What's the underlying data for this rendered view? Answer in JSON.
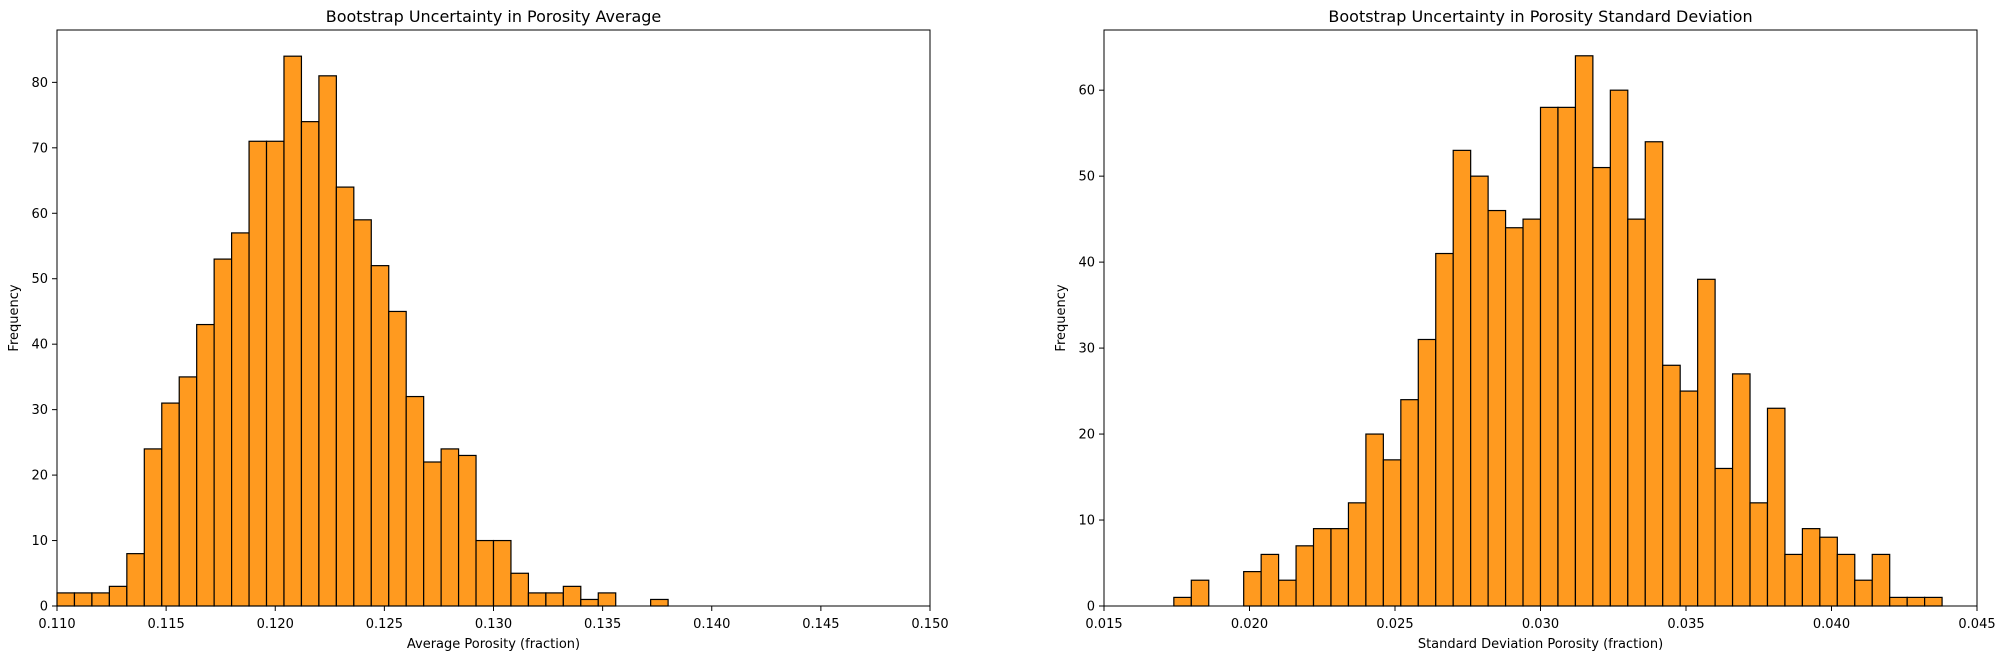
{
  "chart_data": [
    {
      "type": "bar",
      "title": "Bootstrap Uncertainty in Porosity Average",
      "xlabel": "Average Porosity (fraction)",
      "ylabel": "Frequency",
      "xlim": [
        0.11,
        0.15
      ],
      "ylim": [
        0,
        88
      ],
      "bar_color": "#FF9A1F",
      "grid": false,
      "xticks": [
        "0.110",
        "0.115",
        "0.120",
        "0.125",
        "0.130",
        "0.135",
        "0.140",
        "0.145",
        "0.150"
      ],
      "yticks": [
        "0",
        "10",
        "20",
        "30",
        "40",
        "50",
        "60",
        "70",
        "80"
      ],
      "bin_start": 0.11,
      "bin_width": 0.0008,
      "values": [
        2,
        2,
        2,
        3,
        8,
        24,
        31,
        35,
        43,
        53,
        57,
        71,
        71,
        84,
        74,
        81,
        64,
        59,
        52,
        45,
        32,
        22,
        24,
        23,
        10,
        10,
        5,
        2,
        2,
        3,
        1,
        2,
        0,
        0,
        1
      ]
    },
    {
      "type": "bar",
      "title": "Bootstrap Uncertainty in Porosity Standard Deviation",
      "xlabel": "Standard Deviation Porosity (fraction)",
      "ylabel": "Frequency",
      "xlim": [
        0.015,
        0.045
      ],
      "ylim": [
        0,
        67
      ],
      "bar_color": "#FF9A1F",
      "grid": false,
      "xticks": [
        "0.015",
        "0.020",
        "0.025",
        "0.030",
        "0.035",
        "0.040",
        "0.045"
      ],
      "yticks": [
        "0",
        "10",
        "20",
        "30",
        "40",
        "50",
        "60"
      ],
      "bin_start": 0.0174,
      "bin_width": 0.0006,
      "values": [
        1,
        3,
        0,
        0,
        4,
        6,
        3,
        7,
        9,
        9,
        12,
        20,
        17,
        24,
        31,
        41,
        53,
        50,
        46,
        44,
        45,
        58,
        58,
        64,
        51,
        60,
        45,
        54,
        28,
        25,
        38,
        16,
        27,
        12,
        23,
        6,
        9,
        8,
        6,
        3,
        6,
        1,
        1,
        1
      ]
    }
  ]
}
